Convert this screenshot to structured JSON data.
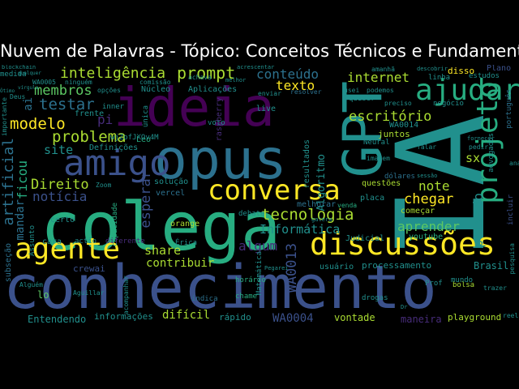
{
  "title": "Nuvem de Palavras - Tópico: Conceitos Técnicos e Fundamentos",
  "colors": {
    "background": "#000000",
    "title_text": "#ffffff",
    "palette": [
      "#440154",
      "#472c7a",
      "#3b518b",
      "#2c718e",
      "#21908d",
      "#27ad81",
      "#5cc863",
      "#aadc32",
      "#fde725"
    ]
  },
  "words": [
    {
      "text": "conhecimento",
      "color": "#3b518b"
    },
    {
      "text": "colega",
      "color": "#27ad81"
    },
    {
      "text": "opus",
      "color": "#2c718e"
    },
    {
      "text": "ideia",
      "color": "#440154"
    },
    {
      "text": "IA",
      "color": "#21908d"
    },
    {
      "text": "GPT",
      "color": "#21908d"
    },
    {
      "text": "amigo",
      "color": "#3b518b"
    },
    {
      "text": "agente",
      "color": "#fde725"
    },
    {
      "text": "discussões",
      "color": "#fde725"
    },
    {
      "text": "conversa",
      "color": "#fde725"
    },
    {
      "text": "ajudar",
      "color": "#27ad81"
    },
    {
      "text": "projeto",
      "color": "#27ad81"
    },
    {
      "text": "inteligência",
      "color": "#aadc32"
    },
    {
      "text": "prompt",
      "color": "#aadc32"
    },
    {
      "text": "conteúdo",
      "color": "#2c718e"
    },
    {
      "text": "internet",
      "color": "#aadc32"
    },
    {
      "text": "membros",
      "color": "#5cc863"
    },
    {
      "text": "testar",
      "color": "#2c718e"
    },
    {
      "text": "modelo",
      "color": "#fde725"
    },
    {
      "text": "problema",
      "color": "#aadc32"
    },
    {
      "text": "escritório",
      "color": "#aadc32"
    },
    {
      "text": "texto",
      "color": "#fde725"
    },
    {
      "text": "tecnologia",
      "color": "#aadc32"
    },
    {
      "text": "Informática",
      "color": "#21908d"
    },
    {
      "text": "aprender",
      "color": "#5cc863"
    },
    {
      "text": "chegar",
      "color": "#fde725"
    },
    {
      "text": "note",
      "color": "#aadc32"
    },
    {
      "text": "Direito",
      "color": "#aadc32"
    },
    {
      "text": "notícia",
      "color": "#3b518b"
    },
    {
      "text": "site",
      "color": "#21908d"
    },
    {
      "text": "artificial",
      "color": "#2c718e"
    },
    {
      "text": "ficou",
      "color": "#27ad81"
    },
    {
      "text": "esperar",
      "color": "#3b518b"
    },
    {
      "text": "share",
      "color": "#aadc32"
    },
    {
      "text": "contribuir",
      "color": "#aadc32"
    },
    {
      "text": "algum",
      "color": "#472c7a"
    },
    {
      "text": "WA0013",
      "color": "#3b518b"
    },
    {
      "text": "WA0004",
      "color": "#3b518b"
    },
    {
      "text": "Algoritmo",
      "color": "#21908d"
    },
    {
      "text": "privado",
      "color": "#21908d"
    },
    {
      "text": "sx",
      "color": "#aadc32"
    },
    {
      "text": "pi",
      "color": "#472c7a"
    },
    {
      "text": "ai",
      "color": "#2c718e"
    },
    {
      "text": "Brasil",
      "color": "#21908d"
    },
    {
      "text": "difícil",
      "color": "#aadc32"
    },
    {
      "text": "Entendendo",
      "color": "#21908d"
    },
    {
      "text": "informações",
      "color": "#21908d"
    },
    {
      "text": "rápido",
      "color": "#21908d"
    },
    {
      "text": "vontade",
      "color": "#aadc32"
    },
    {
      "text": "maneira",
      "color": "#472c7a"
    },
    {
      "text": "playground",
      "color": "#aadc32"
    },
    {
      "text": "processamento",
      "color": "#21908d"
    },
    {
      "text": "usuário",
      "color": "#21908d"
    },
    {
      "text": "Judicial",
      "color": "#21908d"
    },
    {
      "text": "youtube",
      "color": "#27ad81"
    },
    {
      "text": "começar",
      "color": "#aadc32"
    },
    {
      "text": "questões",
      "color": "#aadc32"
    },
    {
      "text": "placa",
      "color": "#21908d"
    },
    {
      "text": "melhorar",
      "color": "#2c718e"
    },
    {
      "text": "venda",
      "color": "#27ad81"
    },
    {
      "text": "debate",
      "color": "#21908d"
    },
    {
      "text": "solução",
      "color": "#21908d"
    },
    {
      "text": "vercel",
      "color": "#2c718e"
    },
    {
      "text": "orange",
      "color": "#aadc32"
    },
    {
      "text": "capacidade",
      "color": "#27ad81"
    },
    {
      "text": "certo",
      "color": "#21908d"
    },
    {
      "text": "cara",
      "color": "#21908d"
    },
    {
      "text": "diferente",
      "color": "#472c7a"
    },
    {
      "text": "Érica",
      "color": "#21908d"
    },
    {
      "text": "horário",
      "color": "#27ad81"
    },
    {
      "text": "chame",
      "color": "#27ad81"
    },
    {
      "text": "indica",
      "color": "#2c718e"
    },
    {
      "text": "Prof",
      "color": "#21908d"
    },
    {
      "text": "bolsa",
      "color": "#aadc32"
    },
    {
      "text": "mundo",
      "color": "#21908d"
    },
    {
      "text": "drogas",
      "color": "#21908d"
    },
    {
      "text": "lo",
      "color": "#5cc863"
    },
    {
      "text": "Assunto",
      "color": "#21908d"
    },
    {
      "text": "mandar",
      "color": "#2c718e"
    },
    {
      "text": "Matemática",
      "color": "#21908d"
    },
    {
      "text": "resultados",
      "color": "#21908d"
    },
    {
      "text": "dólares",
      "color": "#2c718e"
    },
    {
      "text": "imagem",
      "color": "#21908d"
    },
    {
      "text": "juntos",
      "color": "#aadc32"
    },
    {
      "text": "Neural",
      "color": "#21908d"
    },
    {
      "text": "WA0014",
      "color": "#21908d"
    },
    {
      "text": "Definições",
      "color": "#21908d"
    },
    {
      "text": "Núcleo",
      "color": "#21908d"
    },
    {
      "text": "Aplicações",
      "color": "#21908d"
    },
    {
      "text": "medida",
      "color": "#21908d"
    },
    {
      "text": "Leo",
      "color": "#27ad81"
    },
    {
      "text": "live",
      "color": "#21908d"
    },
    {
      "text": "enviar",
      "color": "#21908d"
    },
    {
      "text": "resolver",
      "color": "#2c718e"
    },
    {
      "text": "linha",
      "color": "#21908d"
    },
    {
      "text": "estudos",
      "color": "#21908d"
    },
    {
      "text": "disso",
      "color": "#fde725"
    },
    {
      "text": "usei",
      "color": "#21908d"
    },
    {
      "text": "podemos",
      "color": "#21908d"
    },
    {
      "text": "quiser",
      "color": "#21908d"
    },
    {
      "text": "negócio",
      "color": "#21908d"
    },
    {
      "text": "preciso",
      "color": "#21908d"
    },
    {
      "text": "Plano",
      "color": "#3b518b"
    },
    {
      "text": "português",
      "color": "#2c718e"
    },
    {
      "text": "advogados",
      "color": "#21908d"
    },
    {
      "text": "incluir",
      "color": "#3b518b"
    },
    {
      "text": "análise",
      "color": "#21908d"
    },
    {
      "text": "frente",
      "color": "#21908d"
    },
    {
      "text": "inner",
      "color": "#21908d"
    },
    {
      "text": "voto",
      "color": "#21908d"
    },
    {
      "text": "raspberry",
      "color": "#472c7a"
    },
    {
      "text": "única",
      "color": "#21908d"
    },
    {
      "text": "falar",
      "color": "#21908d"
    },
    {
      "text": "Zoom",
      "color": "#21908d"
    },
    {
      "text": "Aguillar",
      "color": "#21908d"
    },
    {
      "text": "Alguém",
      "color": "#21908d"
    },
    {
      "text": "crewai",
      "color": "#3b518b"
    },
    {
      "text": "actio",
      "color": "#21908d"
    },
    {
      "text": "trazer",
      "color": "#21908d"
    },
    {
      "text": "pedir",
      "color": "#21908d"
    },
    {
      "text": "acompanhar",
      "color": "#21908d"
    },
    {
      "text": "subseção",
      "color": "#2c718e"
    },
    {
      "text": "pesquisa",
      "color": "#21908d"
    },
    {
      "text": "amanhã",
      "color": "#21908d"
    },
    {
      "text": "comissão",
      "color": "#21908d"
    },
    {
      "text": "achava",
      "color": "#21908d"
    },
    {
      "text": "opções",
      "color": "#21908d"
    },
    {
      "text": "ninguém",
      "color": "#21908d"
    },
    {
      "text": "WA0005",
      "color": "#21908d"
    },
    {
      "text": "Deus",
      "color": "#21908d"
    },
    {
      "text": "vírgula",
      "color": "#21908d"
    },
    {
      "text": "qualquer",
      "color": "#21908d"
    },
    {
      "text": "blockchain",
      "color": "#21908d"
    },
    {
      "text": "acrescentar",
      "color": "#21908d"
    },
    {
      "text": "descobrir",
      "color": "#21908d"
    },
    {
      "text": "melhor",
      "color": "#21908d"
    },
    {
      "text": "wjZofJXOv4M",
      "color": "#21908d"
    },
    {
      "text": "Pegarei",
      "color": "#21908d"
    },
    {
      "text": "fornecer",
      "color": "#21908d"
    },
    {
      "text": "importante",
      "color": "#21908d"
    },
    {
      "text": "reel",
      "color": "#21908d"
    },
    {
      "text": "Dr",
      "color": "#21908d"
    },
    {
      "text": "sessão",
      "color": "#21908d"
    },
    {
      "text": "galera",
      "color": "#21908d"
    },
    {
      "text": "Ótimo",
      "color": "#21908d"
    }
  ]
}
